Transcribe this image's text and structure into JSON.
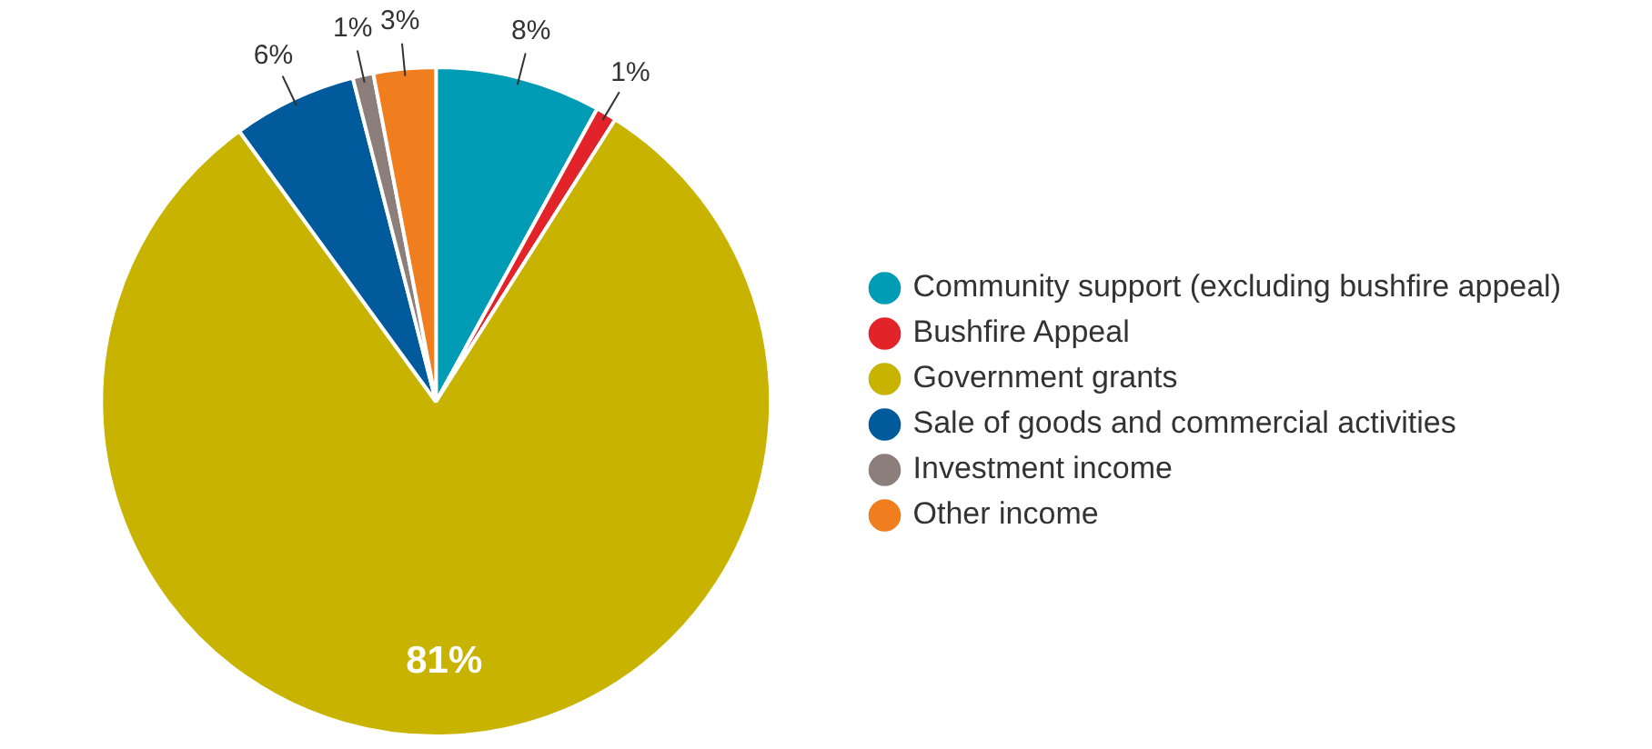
{
  "chart_data": {
    "type": "pie",
    "categories": [
      "Community support (excluding bushfire appeal)",
      "Bushfire Appeal",
      "Government grants",
      "Sale of goods and commercial activities",
      "Investment income",
      "Other income"
    ],
    "values": [
      8,
      1,
      81,
      6,
      1,
      3
    ],
    "colors": [
      "#009bb4",
      "#e3232a",
      "#c8b400",
      "#005a9c",
      "#8c7f7b",
      "#f07d1e"
    ],
    "value_labels": [
      "8%",
      "1%",
      "81%",
      "6%",
      "1%",
      "3%"
    ],
    "legend": "right"
  }
}
